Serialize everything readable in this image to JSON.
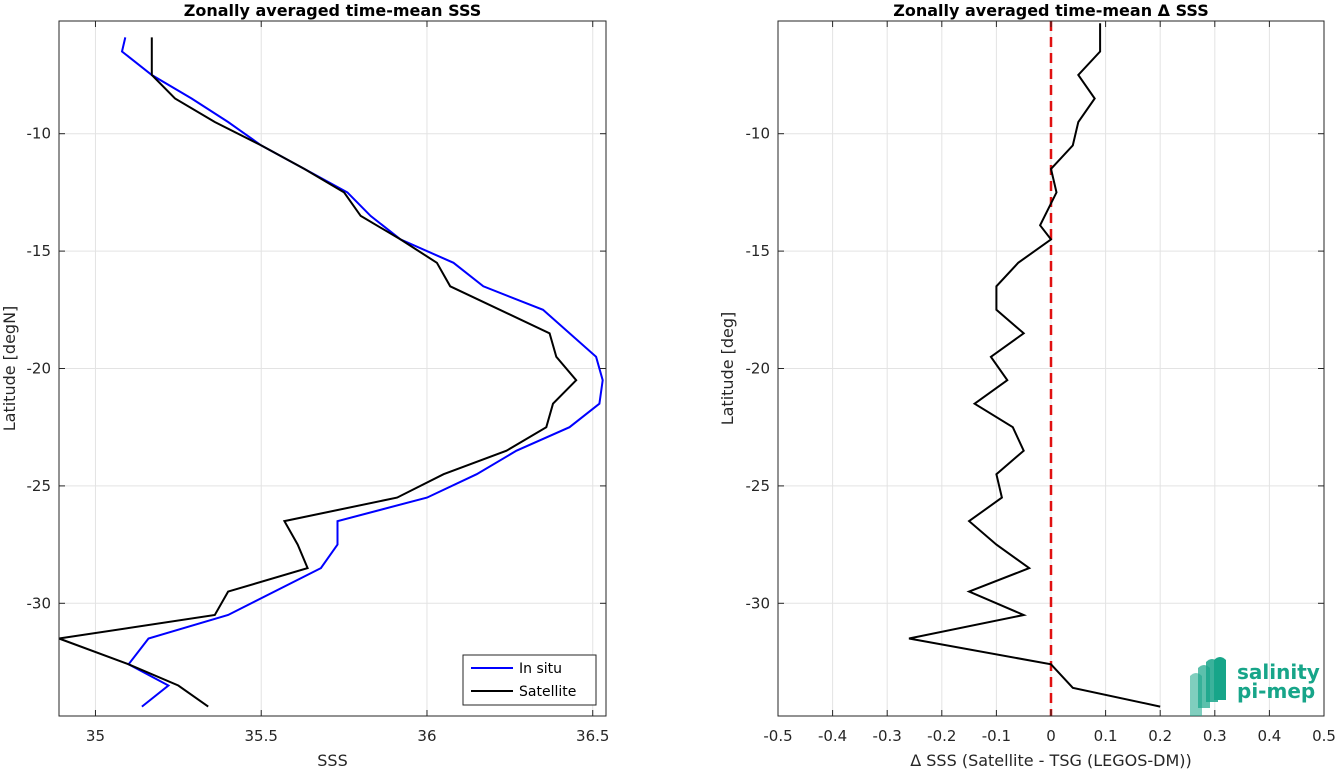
{
  "chart_data": [
    {
      "type": "line",
      "title": "Zonally averaged time-mean SSS",
      "xlabel": "SSS",
      "ylabel": "Latitude [degN]",
      "xlim": [
        34.89,
        36.54
      ],
      "ylim": [
        -34.8,
        -5.2
      ],
      "xticks": [
        35,
        35.5,
        36,
        36.5
      ],
      "xtick_labels": [
        "35",
        "35.5",
        "36",
        "36.5"
      ],
      "yticks": [
        -30,
        -25,
        -20,
        -15,
        -10
      ],
      "ytick_labels": [
        "-30",
        "-25",
        "-20",
        "-15",
        "-10"
      ],
      "grid": true,
      "legend": "bottom-right",
      "series": [
        {
          "name": "In situ",
          "color": "#0000ff",
          "x": [
            35.14,
            35.22,
            35.1,
            35.16,
            35.4,
            35.68,
            35.73,
            35.73,
            36.0,
            36.15,
            36.27,
            36.43,
            36.52,
            36.53,
            36.51,
            36.35,
            36.17,
            36.08,
            35.92,
            35.83,
            35.76,
            35.63,
            35.5,
            35.4,
            35.29,
            35.17,
            35.08,
            35.09
          ],
          "y": [
            -34.4,
            -33.5,
            -32.6,
            -31.5,
            -30.5,
            -28.5,
            -27.5,
            -26.5,
            -25.5,
            -24.5,
            -23.5,
            -22.5,
            -21.5,
            -20.5,
            -19.5,
            -17.5,
            -16.5,
            -15.5,
            -14.5,
            -13.5,
            -12.5,
            -11.5,
            -10.5,
            -9.5,
            -8.5,
            -7.5,
            -6.5,
            -5.9
          ]
        },
        {
          "name": "Satellite",
          "color": "#000000",
          "x": [
            35.34,
            35.25,
            35.1,
            34.89,
            35.36,
            35.4,
            35.64,
            35.61,
            35.57,
            35.91,
            36.05,
            36.24,
            36.36,
            36.38,
            36.45,
            36.39,
            36.37,
            36.07,
            36.03,
            35.92,
            35.8,
            35.75,
            35.63,
            35.5,
            35.36,
            35.24,
            35.17,
            35.17
          ],
          "y": [
            -34.4,
            -33.5,
            -32.6,
            -31.5,
            -30.5,
            -29.5,
            -28.5,
            -27.5,
            -26.5,
            -25.5,
            -24.5,
            -23.5,
            -22.5,
            -21.5,
            -20.5,
            -19.5,
            -18.5,
            -16.5,
            -15.5,
            -14.5,
            -13.5,
            -12.5,
            -11.5,
            -10.5,
            -9.5,
            -8.5,
            -7.5,
            -5.9
          ]
        }
      ]
    },
    {
      "type": "line",
      "title": "Zonally averaged time-mean Δ SSS",
      "xlabel": "Δ SSS (Satellite - TSG (LEGOS-DM))",
      "ylabel": "Latitude [deg]",
      "xlim": [
        -0.5,
        0.5
      ],
      "ylim": [
        -34.8,
        -5.2
      ],
      "xticks": [
        -0.5,
        -0.4,
        -0.3,
        -0.2,
        -0.1,
        0,
        0.1,
        0.2,
        0.3,
        0.4,
        0.5
      ],
      "xtick_labels": [
        "-0.5",
        "-0.4",
        "-0.3",
        "-0.2",
        "-0.1",
        "0",
        "0.1",
        "0.2",
        "0.3",
        "0.4",
        "0.5"
      ],
      "yticks": [
        -30,
        -25,
        -20,
        -15,
        -10
      ],
      "ytick_labels": [
        "-30",
        "-25",
        "-20",
        "-15",
        "-10"
      ],
      "grid": true,
      "reference_line": {
        "x": 0,
        "color": "#e01010",
        "style": "dashed"
      },
      "series": [
        {
          "color": "#000000",
          "x": [
            0.2,
            0.04,
            0.0,
            -0.26,
            -0.05,
            -0.15,
            -0.04,
            -0.1,
            -0.15,
            -0.09,
            -0.1,
            -0.05,
            -0.07,
            -0.14,
            -0.08,
            -0.11,
            -0.05,
            -0.1,
            -0.1,
            -0.06,
            0.0,
            -0.02,
            0.01,
            0.0,
            0.04,
            0.05,
            0.08,
            0.05,
            0.09,
            0.09
          ],
          "y": [
            -34.4,
            -33.6,
            -32.6,
            -31.5,
            -30.5,
            -29.5,
            -28.5,
            -27.5,
            -26.5,
            -25.5,
            -24.5,
            -23.5,
            -22.5,
            -21.5,
            -20.5,
            -19.5,
            -18.5,
            -17.5,
            -16.5,
            -15.5,
            -14.5,
            -13.9,
            -12.5,
            -11.5,
            -10.5,
            -9.5,
            -8.5,
            -7.5,
            -6.5,
            -5.3
          ]
        }
      ]
    }
  ],
  "logo": {
    "line1": "salinity",
    "line2": "pi-mep",
    "color": "#17a589"
  }
}
